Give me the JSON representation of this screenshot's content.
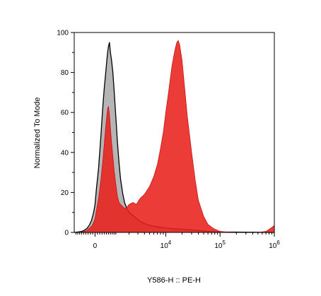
{
  "chart_data": {
    "type": "area",
    "title": "",
    "xlabel": "Y586-H :: PE-H",
    "ylabel": "Normalized To Mode",
    "x_scale": "biexponential",
    "xlim": [
      -1000,
      1000000
    ],
    "ylim": [
      0,
      100
    ],
    "grid": false,
    "legend": "none",
    "y_ticks": [
      {
        "value": 0,
        "label": "0"
      },
      {
        "value": 20,
        "label": "20"
      },
      {
        "value": 40,
        "label": "40"
      },
      {
        "value": 60,
        "label": "60"
      },
      {
        "value": 80,
        "label": "80"
      },
      {
        "value": 100,
        "label": "100"
      }
    ],
    "x_ticks": [
      {
        "value": 0,
        "base": "0",
        "exp": ""
      },
      {
        "value": 10000,
        "base": "10",
        "exp": "4"
      },
      {
        "value": 100000,
        "base": "10",
        "exp": "5"
      },
      {
        "value": 1000000,
        "base": "10",
        "exp": "6"
      }
    ],
    "series": [
      {
        "color": "#b5b5b5",
        "outline": "#000000",
        "x": [
          -1000,
          -800,
          -600,
          -480,
          -350,
          -250,
          -150,
          -60,
          0,
          60,
          150,
          250,
          330,
          400,
          470,
          520,
          560,
          600,
          650,
          700,
          760,
          830,
          900,
          1000,
          1100,
          1200,
          1300,
          1450,
          1600,
          1800,
          2000,
          2400,
          2800,
          3300,
          4000,
          5000,
          7000,
          10000,
          15000,
          25000,
          40000,
          60000,
          100000,
          1000000
        ],
        "y": [
          0,
          0.2,
          0.5,
          1,
          2,
          3.5,
          6,
          10,
          14,
          22,
          32,
          48,
          62,
          72,
          80,
          86,
          90,
          93,
          95,
          90,
          86,
          80,
          71,
          58,
          45,
          35,
          27,
          20,
          15,
          12,
          10,
          8.5,
          7,
          5.5,
          4.5,
          3.5,
          2.8,
          2.2,
          1.8,
          1.4,
          1,
          0.5,
          0.2,
          0
        ]
      },
      {
        "color": "#e8211b",
        "outline": "#c81414",
        "x": [
          -1000,
          -800,
          -600,
          -480,
          -350,
          -250,
          -150,
          -60,
          0,
          60,
          150,
          250,
          330,
          400,
          470,
          520,
          560,
          600,
          650,
          700,
          760,
          830,
          900,
          1000,
          1100,
          1200,
          1300,
          1450,
          1600,
          1800,
          2000,
          2400,
          2800,
          3300,
          4000,
          5000,
          6000,
          7000,
          8000,
          9000,
          10000,
          11000,
          12000,
          13000,
          14000,
          15000,
          16000,
          17000,
          18000,
          20000,
          22000,
          25000,
          30000,
          35000,
          40000,
          50000,
          60000,
          75000,
          100000,
          130000,
          200000,
          300000,
          500000,
          700000,
          850000,
          950000,
          1000000
        ],
        "y": [
          0,
          0.1,
          0.2,
          0.5,
          1,
          2,
          3,
          5,
          7,
          11,
          17,
          26,
          35,
          44,
          53,
          58,
          62,
          63,
          59,
          52,
          45,
          38,
          31,
          24,
          18,
          15,
          14,
          13,
          12,
          12.5,
          14,
          15,
          14,
          17,
          19,
          23,
          28,
          34,
          42,
          50,
          60,
          68,
          76,
          83,
          88,
          92,
          95,
          96,
          94,
          86,
          74,
          58,
          40,
          26,
          16,
          8,
          4,
          2,
          0.5,
          0.2,
          0,
          0,
          0,
          0.5,
          2,
          3,
          3.5
        ]
      }
    ]
  }
}
